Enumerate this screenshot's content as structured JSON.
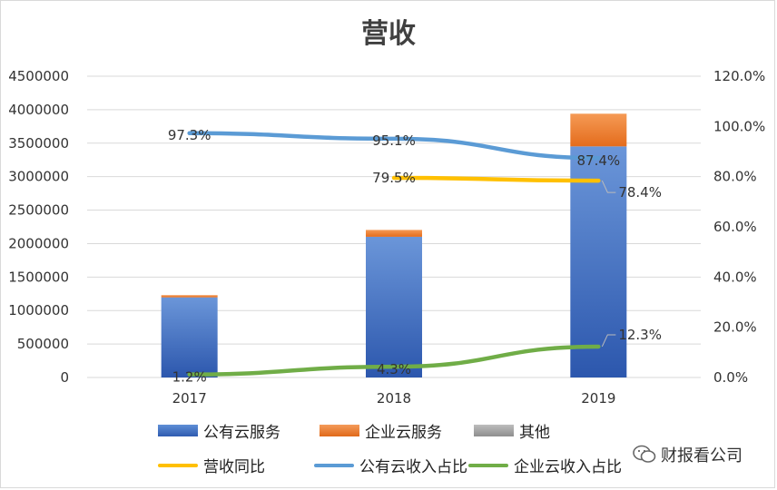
{
  "chart_data": {
    "type": "bar+line",
    "title": "营收",
    "categories": [
      "2017",
      "2018",
      "2019"
    ],
    "stacked_bars": [
      {
        "name": "公有云服务",
        "values": [
          1197000,
          2102000,
          3452000
        ],
        "color": "#4472c4"
      },
      {
        "name": "企业云服务",
        "values": [
          33000,
          102000,
          488000
        ],
        "color": "#ed7d31"
      },
      {
        "name": "其他",
        "values": [
          0,
          0,
          0
        ],
        "color": "#a5a5a5"
      }
    ],
    "lines": [
      {
        "name": "营收同比",
        "values": [
          null,
          0.795,
          0.784
        ],
        "labels": [
          "",
          "79.5%",
          "78.4%"
        ],
        "color": "#ffc000"
      },
      {
        "name": "公有云收入占比",
        "values": [
          0.973,
          0.951,
          0.874
        ],
        "labels": [
          "97.3%",
          "95.1%",
          "87.4%"
        ],
        "color": "#5b9bd5"
      },
      {
        "name": "企业云收入占比",
        "values": [
          0.012,
          0.043,
          0.123
        ],
        "labels": [
          "1.2%",
          "4.3%",
          "12.3%"
        ],
        "color": "#70ad47"
      }
    ],
    "y_left": {
      "min": 0,
      "max": 4500000,
      "step": 500000,
      "ticks": [
        "0",
        "500000",
        "1000000",
        "1500000",
        "2000000",
        "2500000",
        "3000000",
        "3500000",
        "4000000",
        "4500000"
      ]
    },
    "y_right": {
      "min": 0,
      "max": 1.2,
      "step": 0.2,
      "ticks": [
        "0.0%",
        "20.0%",
        "40.0%",
        "60.0%",
        "80.0%",
        "100.0%",
        "120.0%"
      ]
    },
    "legend_position": "bottom"
  },
  "legend": [
    {
      "label": "公有云服务",
      "kind": "box",
      "color": "#4472c4"
    },
    {
      "label": "企业云服务",
      "kind": "box",
      "color": "#ed7d31"
    },
    {
      "label": "其他",
      "kind": "box",
      "color": "#a5a5a5"
    },
    {
      "label": "营收同比",
      "kind": "line",
      "color": "#ffc000"
    },
    {
      "label": "公有云收入占比",
      "kind": "line",
      "color": "#5b9bd5"
    },
    {
      "label": "企业云收入占比",
      "kind": "line",
      "color": "#70ad47"
    }
  ],
  "watermark": {
    "text": "财报看公司",
    "icon": "wechat-icon"
  }
}
